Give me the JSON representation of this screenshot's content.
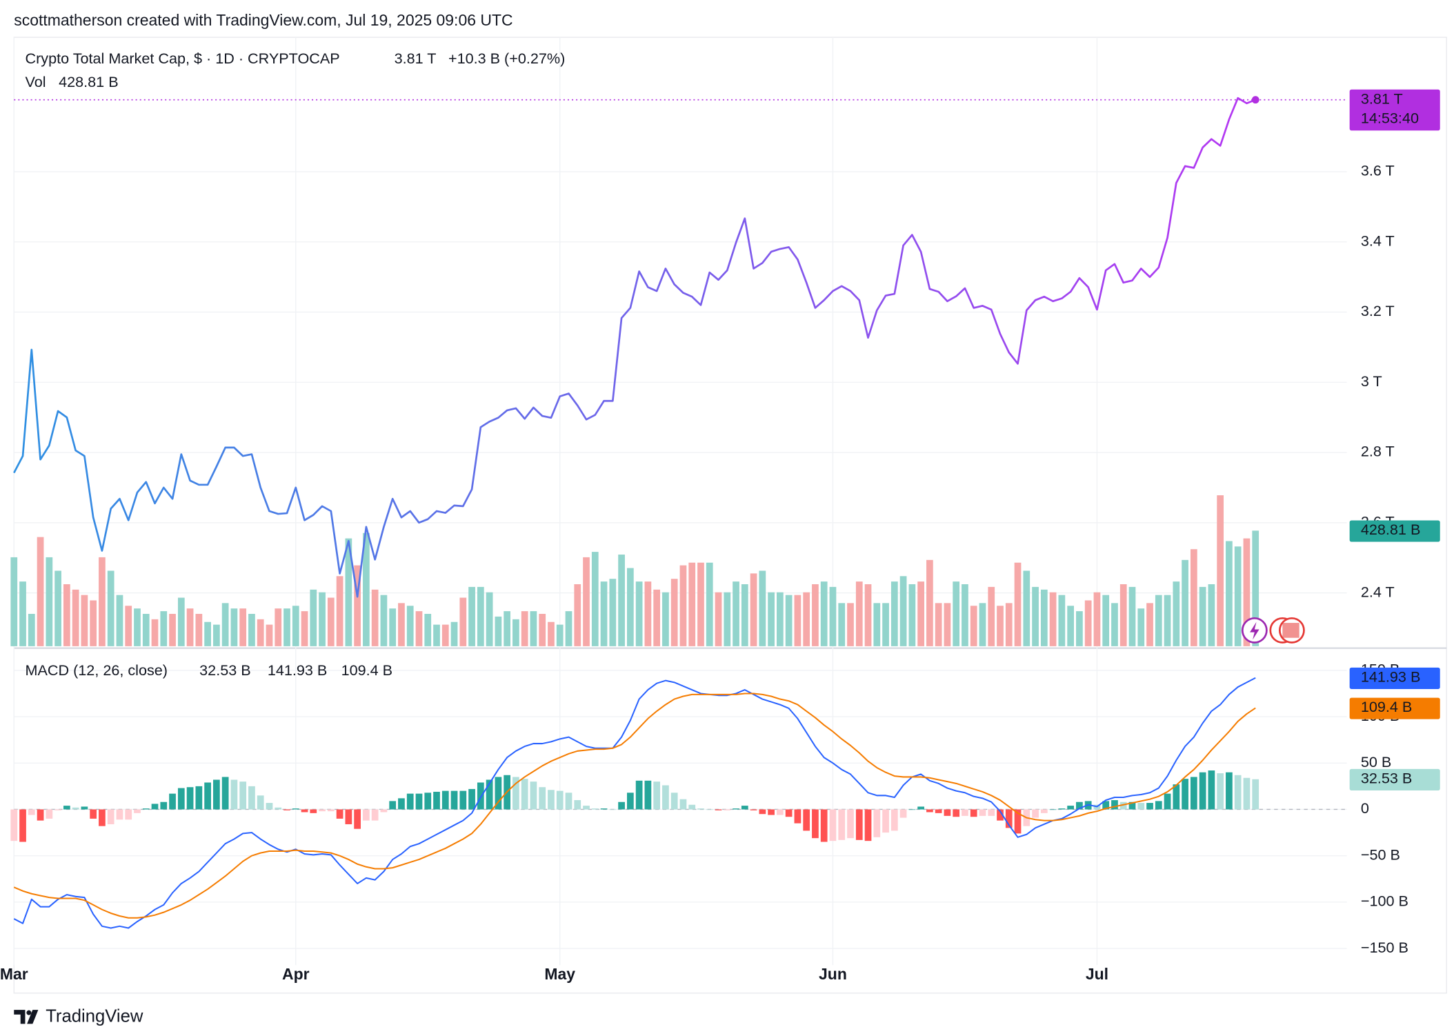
{
  "header": {
    "credit": "scottmatherson created with TradingView.com, Jul 19, 2025 09:06 UTC"
  },
  "footer": {
    "brand": "TradingView"
  },
  "chart_data": [
    {
      "type": "line",
      "title": "Crypto Total Market Cap, $ · 1D · CRYPTOCAP",
      "last_price_label": "3.81 T",
      "change_label": "+10.3 B (+0.27%)",
      "countdown": "14:53:40",
      "price_color": "#b12fe0",
      "categories": [
        "Mar",
        null,
        null,
        null,
        null,
        null,
        null,
        null,
        null,
        null,
        null,
        null,
        null,
        null,
        null,
        null,
        null,
        null,
        null,
        null,
        null,
        null,
        null,
        null,
        null,
        null,
        null,
        null,
        null,
        null,
        null,
        null,
        "Apr",
        null,
        null,
        null,
        null,
        null,
        null,
        null,
        null,
        null,
        null,
        null,
        null,
        null,
        null,
        null,
        null,
        null,
        null,
        null,
        null,
        null,
        null,
        null,
        null,
        null,
        null,
        null,
        null,
        null,
        "May",
        null,
        null,
        null,
        null,
        null,
        null,
        null,
        null,
        null,
        null,
        null,
        null,
        null,
        null,
        null,
        null,
        null,
        null,
        null,
        null,
        null,
        null,
        null,
        null,
        null,
        null,
        null,
        null,
        null,
        null,
        "Jun",
        null,
        null,
        null,
        null,
        null,
        null,
        null,
        null,
        null,
        null,
        null,
        null,
        null,
        null,
        null,
        null,
        null,
        null,
        null,
        null,
        null,
        null,
        null,
        null,
        null,
        null,
        null,
        null,
        null,
        "Jul",
        null,
        null,
        null,
        null,
        null,
        null,
        null,
        null,
        null,
        null,
        null,
        null,
        null,
        null,
        null,
        null,
        null,
        null
      ],
      "series": [
        {
          "colors": [
            "#2e90e2",
            "#b536f2"
          ],
          "values": [
            2.742,
            2.79,
            3.093,
            2.78,
            2.82,
            2.918,
            2.9,
            2.806,
            2.79,
            2.615,
            2.52,
            2.64,
            2.668,
            2.607,
            2.686,
            2.716,
            2.655,
            2.7,
            2.668,
            2.795,
            2.72,
            2.708,
            2.708,
            2.76,
            2.814,
            2.814,
            2.79,
            2.795,
            2.7,
            2.633,
            2.625,
            2.627,
            2.7,
            2.607,
            2.622,
            2.647,
            2.633,
            2.455,
            2.548,
            2.389,
            2.588,
            2.495,
            2.588,
            2.668,
            2.615,
            2.633,
            2.6,
            2.61,
            2.633,
            2.628,
            2.649,
            2.647,
            2.695,
            2.872,
            2.888,
            2.899,
            2.92,
            2.926,
            2.896,
            2.928,
            2.904,
            2.899,
            2.96,
            2.968,
            2.934,
            2.894,
            2.907,
            2.947,
            2.947,
            3.183,
            3.212,
            3.316,
            3.271,
            3.26,
            3.324,
            3.279,
            3.255,
            3.244,
            3.22,
            3.313,
            3.292,
            3.319,
            3.398,
            3.467,
            3.324,
            3.34,
            3.372,
            3.38,
            3.385,
            3.35,
            3.284,
            3.212,
            3.234,
            3.26,
            3.274,
            3.26,
            3.234,
            3.127,
            3.205,
            3.247,
            3.252,
            3.39,
            3.42,
            3.372,
            3.266,
            3.258,
            3.231,
            3.245,
            3.268,
            3.212,
            3.218,
            3.207,
            3.138,
            3.085,
            3.053,
            3.205,
            3.234,
            3.244,
            3.231,
            3.239,
            3.258,
            3.297,
            3.271,
            3.207,
            3.319,
            3.337,
            3.284,
            3.29,
            3.324,
            3.3,
            3.327,
            3.412,
            3.568,
            3.616,
            3.611,
            3.669,
            3.693,
            3.674,
            3.749,
            3.81,
            3.795,
            3.805
          ]
        }
      ],
      "ylim": [
        2.248,
        3.983
      ],
      "yticks": [
        {
          "value": 2.4,
          "label": "2.4 T"
        },
        {
          "value": 2.6,
          "label": "2.6 T"
        },
        {
          "value": 2.8,
          "label": "2.8 T"
        },
        {
          "value": 3,
          "label": "3 T"
        },
        {
          "value": 3.2,
          "label": "3.2 T"
        },
        {
          "value": 3.4,
          "label": "3.4 T"
        },
        {
          "value": 3.6,
          "label": "3.6 T"
        }
      ],
      "grid": true,
      "volume": {
        "name": "Vol",
        "last_label": "428.81 B",
        "label_color": "#26a69a",
        "up_color": "#92d4cc",
        "down_color": "#f6a8a8",
        "y2lim": [
          0,
          2259
        ],
        "values": [
          330,
          240,
          120,
          405,
          330,
          280,
          230,
          210,
          190,
          170,
          330,
          280,
          190,
          150,
          140,
          120,
          100,
          130,
          120,
          180,
          140,
          120,
          90,
          80,
          160,
          140,
          140,
          120,
          100,
          80,
          140,
          140,
          150,
          130,
          210,
          200,
          180,
          260,
          400,
          300,
          420,
          210,
          190,
          140,
          160,
          150,
          130,
          120,
          80,
          80,
          90,
          180,
          220,
          220,
          200,
          110,
          130,
          100,
          130,
          130,
          120,
          90,
          80,
          130,
          230,
          330,
          350,
          240,
          250,
          340,
          290,
          240,
          240,
          210,
          200,
          250,
          300,
          310,
          310,
          310,
          200,
          200,
          240,
          230,
          270,
          280,
          200,
          200,
          190,
          190,
          200,
          230,
          240,
          220,
          160,
          160,
          240,
          230,
          160,
          160,
          240,
          260,
          230,
          240,
          320,
          160,
          160,
          240,
          230,
          150,
          160,
          220,
          150,
          160,
          310,
          280,
          220,
          210,
          200,
          190,
          150,
          130,
          170,
          200,
          190,
          160,
          230,
          220,
          140,
          160,
          190,
          190,
          240,
          320,
          360,
          220,
          230,
          560,
          390,
          370,
          400,
          428.81
        ]
      }
    },
    {
      "type": "macd",
      "title": "MACD (12, 26, close)",
      "ylim": [
        -168,
        169
      ],
      "yticks": [
        {
          "value": -150,
          "label": "−150 B"
        },
        {
          "value": -100,
          "label": "−100 B"
        },
        {
          "value": -50,
          "label": "−50 B"
        },
        0,
        {
          "value": 50,
          "label": "50 B"
        },
        {
          "value": 100,
          "label": "100 B"
        },
        {
          "value": 150,
          "label": "150 B"
        }
      ],
      "series": [
        {
          "type": "bar",
          "last_label": "32.53 B",
          "color": "#a8ddd6",
          "colors": {
            "rise_up": "#26a69a",
            "fall_up": "#b2dfdb",
            "fall_down": "#ff5252",
            "rise_down": "#ffcdd2"
          },
          "values": [
            -34,
            -35,
            -6,
            -12,
            -10,
            -1,
            4,
            2,
            3,
            -10,
            -18,
            -16,
            -11,
            -11,
            -4,
            1,
            6,
            8,
            17,
            23,
            24,
            25,
            29,
            32,
            35,
            32,
            30,
            25,
            15,
            7,
            2,
            -1,
            1,
            -3,
            -4,
            -2,
            -2,
            -10,
            -16,
            -21,
            -12,
            -12,
            -3,
            9,
            12,
            17,
            17,
            18,
            19,
            20,
            20,
            20,
            22,
            29,
            32,
            35,
            37,
            35,
            33,
            30,
            24,
            21,
            20,
            18,
            10,
            4,
            1,
            1,
            0,
            8,
            18,
            31,
            31,
            30,
            26,
            18,
            11,
            5,
            1,
            0,
            -1,
            -1,
            1,
            4,
            -1,
            -5,
            -6,
            -6,
            -8,
            -15,
            -23,
            -31,
            -35,
            -34,
            -33,
            -31,
            -33,
            -34,
            -30,
            -25,
            -23,
            -9,
            0,
            3,
            -3,
            -4,
            -7,
            -8,
            -7,
            -8,
            -7,
            -7,
            -12,
            -20,
            -26,
            -18,
            -9,
            -4,
            0,
            1,
            4,
            8,
            9,
            5,
            9,
            10,
            8,
            8,
            7,
            7,
            9,
            17,
            27,
            33,
            35,
            40,
            42,
            39,
            40,
            37,
            34,
            32.53
          ]
        },
        {
          "type": "line",
          "last_label": "141.93 B",
          "color": "#2962ff",
          "values": [
            -118,
            -123,
            -97,
            -105,
            -105,
            -97,
            -92,
            -94,
            -95,
            -113,
            -126,
            -128,
            -126,
            -128,
            -121,
            -115,
            -108,
            -103,
            -90,
            -80,
            -74,
            -67,
            -57,
            -47,
            -37,
            -32,
            -26,
            -25,
            -32,
            -38,
            -43,
            -46,
            -43,
            -48,
            -49,
            -48,
            -49,
            -60,
            -70,
            -80,
            -74,
            -76,
            -67,
            -54,
            -48,
            -40,
            -37,
            -32,
            -27,
            -22,
            -17,
            -12,
            -4,
            13,
            28,
            43,
            56,
            63,
            68,
            71,
            71,
            73,
            76,
            78,
            73,
            68,
            66,
            66,
            66,
            78,
            96,
            119,
            129,
            136,
            139,
            137,
            133,
            129,
            125,
            124,
            123,
            123,
            125,
            129,
            124,
            119,
            116,
            113,
            109,
            98,
            83,
            68,
            56,
            50,
            43,
            38,
            28,
            18,
            15,
            15,
            13,
            26,
            35,
            38,
            31,
            28,
            23,
            20,
            18,
            14,
            12,
            8,
            -2,
            -17,
            -30,
            -27,
            -20,
            -16,
            -12,
            -10,
            -5,
            1,
            5,
            3,
            10,
            13,
            13,
            15,
            16,
            18,
            23,
            36,
            53,
            68,
            78,
            93,
            106,
            113,
            124,
            132,
            137,
            141.93
          ]
        },
        {
          "type": "line",
          "last_label": "109.4 B",
          "color": "#f57c00",
          "values": [
            -84,
            -88,
            -91,
            -93,
            -95,
            -96,
            -96,
            -96,
            -98,
            -103,
            -108,
            -112,
            -115,
            -117,
            -117,
            -116,
            -114,
            -111,
            -107,
            -103,
            -98,
            -92,
            -86,
            -79,
            -72,
            -64,
            -56,
            -50,
            -47,
            -45,
            -45,
            -45,
            -44,
            -45,
            -45,
            -46,
            -47,
            -50,
            -54,
            -59,
            -62,
            -64,
            -64,
            -63,
            -60,
            -57,
            -54,
            -50,
            -46,
            -42,
            -37,
            -32,
            -26,
            -16,
            -4,
            8,
            19,
            28,
            35,
            41,
            47,
            52,
            56,
            60,
            63,
            64,
            65,
            65,
            66,
            70,
            78,
            88,
            98,
            106,
            113,
            119,
            122,
            124,
            124,
            124,
            124,
            124,
            124,
            125,
            125,
            124,
            122,
            119,
            117,
            113,
            106,
            99,
            91,
            84,
            76,
            69,
            61,
            52,
            45,
            40,
            36,
            35,
            35,
            35,
            34,
            32,
            30,
            28,
            25,
            22,
            19,
            15,
            10,
            3,
            -4,
            -9,
            -11,
            -12,
            -12,
            -11,
            -9,
            -7,
            -4,
            -2,
            1,
            3,
            5,
            7,
            9,
            11,
            14,
            19,
            26,
            35,
            43,
            53,
            64,
            74,
            84,
            95,
            103,
            109.4
          ]
        }
      ]
    }
  ]
}
